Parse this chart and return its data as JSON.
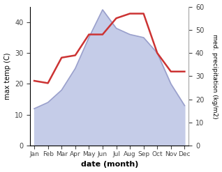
{
  "months": [
    "Jan",
    "Feb",
    "Mar",
    "Apr",
    "May",
    "Jun",
    "Jul",
    "Aug",
    "Sep",
    "Oct",
    "Nov",
    "Dec"
  ],
  "temperature": [
    12,
    14,
    18,
    25,
    35,
    44,
    38,
    36,
    35,
    30,
    20,
    13
  ],
  "precipitation": [
    28,
    27,
    38,
    39,
    48,
    48,
    55,
    57,
    57,
    40,
    32,
    32
  ],
  "temp_color": "#9aa0cc",
  "temp_fill_color": "#c5cce8",
  "precip_color": "#cc3333",
  "ylabel_left": "max temp (C)",
  "ylabel_right": "med. precipitation (kg/m2)",
  "xlabel": "date (month)",
  "ylim_left": [
    0,
    45
  ],
  "ylim_right": [
    0,
    60
  ],
  "yticks_left": [
    0,
    10,
    20,
    30,
    40
  ],
  "yticks_right": [
    0,
    10,
    20,
    30,
    40,
    50,
    60
  ],
  "background_color": "#ffffff"
}
